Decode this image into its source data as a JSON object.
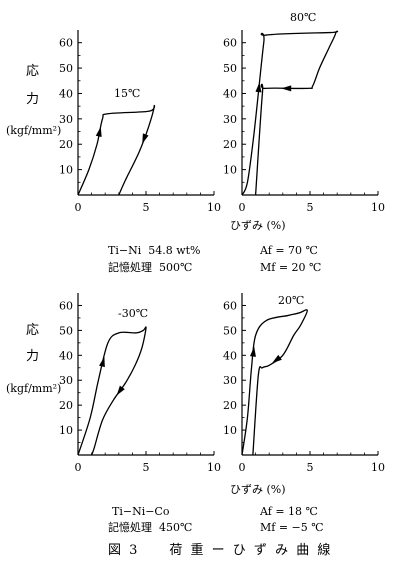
{
  "figure_caption": "図 3　　荷 重 ー ひ ず み 曲 線",
  "chart_data": [
    {
      "type": "line",
      "ylabel_chars": [
        "応",
        "力"
      ],
      "yunit": "(kgf/mm²)",
      "xlabel": "ひずみ (%)",
      "xlim": [
        0,
        10
      ],
      "ylim": [
        0,
        65
      ],
      "xticks": [
        "0",
        "5",
        "10"
      ],
      "yticks": [
        "10",
        "20",
        "30",
        "40",
        "50",
        "60"
      ],
      "series": [
        {
          "name": "15℃",
          "points": [
            [
              0,
              0
            ],
            [
              0.8,
              10
            ],
            [
              1.4,
              20
            ],
            [
              1.8,
              30
            ],
            [
              2.2,
              32
            ],
            [
              5.2,
              33
            ],
            [
              5.6,
              35
            ],
            [
              5.2,
              27
            ],
            [
              4.5,
              17
            ],
            [
              3.5,
              6
            ],
            [
              3,
              0
            ]
          ]
        },
        {
          "name": "80℃",
          "points": [
            [
              0,
              0
            ],
            [
              0.4,
              5
            ],
            [
              0.9,
              25
            ],
            [
              1.6,
              60
            ],
            [
              1.8,
              63
            ],
            [
              6.5,
              64
            ],
            [
              6.9,
              64
            ],
            [
              6.4,
              58
            ],
            [
              5.7,
              50
            ],
            [
              5.2,
              43
            ],
            [
              4.8,
              42
            ],
            [
              1.7,
              42
            ],
            [
              1.5,
              40
            ],
            [
              1,
              0
            ]
          ]
        }
      ],
      "notes": [
        "Ti−Ni  54.8 wt%",
        "記憶処理  500℃",
        "Af = 70 ℃",
        "Mf = 20 ℃"
      ]
    },
    {
      "type": "line",
      "ylabel_chars": [
        "応",
        "力"
      ],
      "yunit": "(kgf/mm²)",
      "xlabel": "ひずみ (%)",
      "xlim": [
        0,
        10
      ],
      "ylim": [
        0,
        65
      ],
      "xticks": [
        "0",
        "5",
        "10"
      ],
      "yticks": [
        "10",
        "20",
        "30",
        "40",
        "50",
        "60"
      ],
      "series": [
        {
          "name": "-30℃",
          "points": [
            [
              0,
              0
            ],
            [
              0.9,
              15
            ],
            [
              1.5,
              30
            ],
            [
              2.2,
              45
            ],
            [
              3,
              49
            ],
            [
              4.3,
              49
            ],
            [
              4.8,
              50
            ],
            [
              5,
              51
            ],
            [
              4.7,
              43
            ],
            [
              4.2,
              36
            ],
            [
              3.5,
              29
            ],
            [
              2.6,
              22
            ],
            [
              1.8,
              14
            ],
            [
              1.2,
              3
            ],
            [
              1,
              0
            ]
          ]
        },
        {
          "name": "20℃",
          "points": [
            [
              0,
              0
            ],
            [
              0.4,
              15
            ],
            [
              0.7,
              35
            ],
            [
              1,
              48
            ],
            [
              1.8,
              54
            ],
            [
              3.4,
              56
            ],
            [
              4.2,
              57
            ],
            [
              4.8,
              58
            ],
            [
              4.3,
              52
            ],
            [
              3.8,
              48
            ],
            [
              3,
              40
            ],
            [
              2,
              36
            ],
            [
              1.5,
              35
            ],
            [
              1.2,
              32
            ],
            [
              0.8,
              0
            ]
          ]
        }
      ],
      "notes": [
        "Ti−Ni−Co",
        "記憶処理  450℃",
        "Af = 18 ℃",
        "Mf = −5 ℃"
      ]
    }
  ]
}
